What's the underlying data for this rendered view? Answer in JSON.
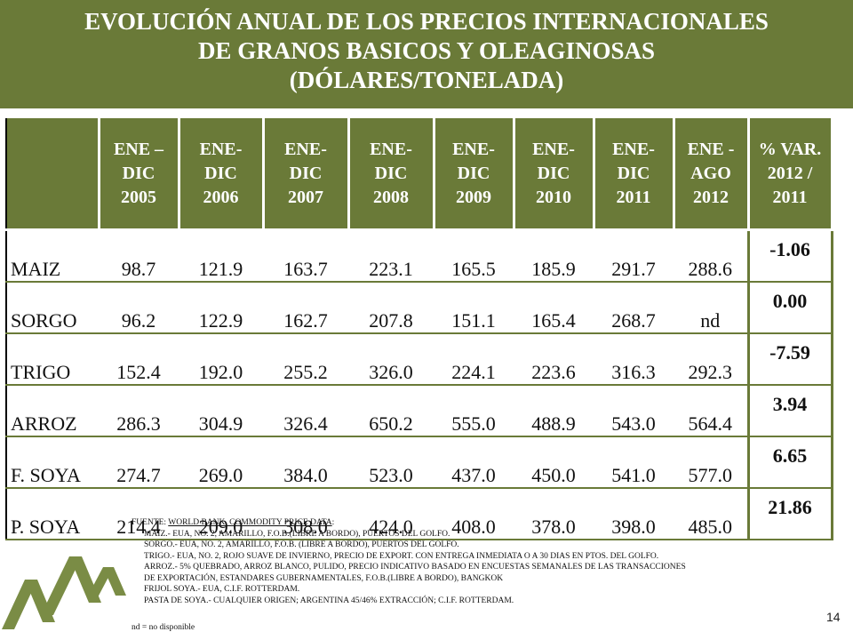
{
  "title": {
    "line1": "EVOLUCIÓN ANUAL DE LOS PRECIOS INTERNACIONALES",
    "line2": "DE GRANOS BASICOS Y OLEAGINOSAS",
    "line3": "(DÓLARES/TONELADA)"
  },
  "table": {
    "columns": [
      [
        "ENE –",
        "DIC",
        "2005"
      ],
      [
        "ENE-",
        "DIC",
        "2006"
      ],
      [
        "ENE-",
        "DIC",
        "2007"
      ],
      [
        "ENE-",
        "DIC",
        "2008"
      ],
      [
        "ENE-",
        "DIC",
        "2009"
      ],
      [
        "ENE-",
        "DIC",
        "2010"
      ],
      [
        "ENE-",
        "DIC",
        "2011"
      ],
      [
        "ENE -",
        "AGO",
        "2012"
      ],
      [
        "% VAR.",
        "2012 /",
        "2011"
      ]
    ],
    "rows": [
      {
        "product": "MAIZ",
        "values": [
          "98.7",
          "121.9",
          "163.7",
          "223.1",
          "165.5",
          "185.9",
          "291.7",
          "288.6"
        ],
        "var": "-1.06"
      },
      {
        "product": "SORGO",
        "values": [
          "96.2",
          "122.9",
          "162.7",
          "207.8",
          "151.1",
          "165.4",
          "268.7",
          "nd"
        ],
        "var": "0.00"
      },
      {
        "product": "TRIGO",
        "values": [
          "152.4",
          "192.0",
          "255.2",
          "326.0",
          "224.1",
          "223.6",
          "316.3",
          "292.3"
        ],
        "var": "-7.59"
      },
      {
        "product": "ARROZ",
        "values": [
          "286.3",
          "304.9",
          "326.4",
          "650.2",
          "555.0",
          "488.9",
          "543.0",
          "564.4"
        ],
        "var": "3.94"
      },
      {
        "product": "F. SOYA",
        "values": [
          "274.7",
          "269.0",
          "384.0",
          "523.0",
          "437.0",
          "450.0",
          "541.0",
          "577.0"
        ],
        "var": "6.65"
      },
      {
        "product": "P. SOYA",
        "values": [
          "214.4",
          "209.0",
          "308.0",
          "424.0",
          "408.0",
          "378.0",
          "398.0",
          "485.0"
        ],
        "var": "21.86"
      }
    ]
  },
  "notes": {
    "source_label": "FUENTE: ",
    "source_name": "WORLD BANK, COMMODITY PRICE DATA",
    "source_colon": ":",
    "lines": [
      "MAIZ.-    EUA, NO. 2, AMARILLO, F.O.B.(LIBRE A BORDO), PUERTOS DEL GOLFO.",
      "SORGO.- EUA, NO. 2, AMARILLO, F.O.B. (LIBRE A BORDO), PUERTOS DEL GOLFO.",
      "TRIGO.-  EUA, NO. 2, ROJO SUAVE DE INVIERNO,  PRECIO DE EXPORT. CON ENTREGA INMEDIATA O A 30 DIAS EN PTOS. DEL GOLFO.",
      "ARROZ.- 5% QUEBRADO, ARROZ BLANCO,  PULIDO, PRECIO INDICATIVO BASADO EN  ENCUESTAS SEMANALES DE LAS TRANSACCIONES",
      "DE EXPORTACIÓN, ESTANDARES GUBERNAMENTALES,  F.O.B.(LIBRE A BORDO),  BANGKOK",
      "FRIJOL SOYA.-  EUA, C.I.F. ROTTERDAM.",
      "PASTA DE SOYA.- CUALQUIER ORIGEN; ARGENTINA 45/46% EXTRACCIÓN; C.I.F. ROTTERDAM."
    ],
    "nd_note": "nd  = no disponible"
  },
  "page_number": "14",
  "colors": {
    "accent": "#6a7a38",
    "logo": "#7a8c45"
  }
}
